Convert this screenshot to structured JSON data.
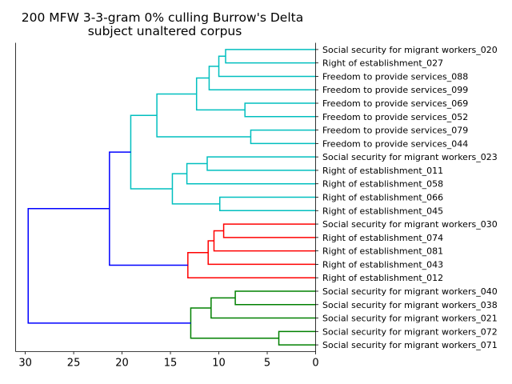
{
  "chart_data": {
    "type": "dendrogram",
    "title": "200 MFW 3-3-gram 0% culling Burrow's Delta",
    "subtitle": "subject unaltered corpus",
    "xlim": [
      31,
      0
    ],
    "x_ticks": [
      30,
      25,
      20,
      15,
      10,
      5,
      0
    ],
    "orientation": "leaves-right",
    "leaves": [
      "Social security for migrant workers_020",
      "Right of establishment_027",
      "Freedom to provide services_088",
      "Freedom to provide services_099",
      "Freedom to provide services_069",
      "Freedom to provide services_052",
      "Freedom to provide services_079",
      "Freedom to provide services_044",
      "Social security for migrant workers_023",
      "Right of establishment_011",
      "Right of establishment_058",
      "Right of establishment_066",
      "Right of establishment_045",
      "Social security for migrant workers_030",
      "Right of establishment_074",
      "Right of establishment_081",
      "Right of establishment_043",
      "Right of establishment_012",
      "Social security for migrant workers_040",
      "Social security for migrant workers_038",
      "Social security for migrant workers_021",
      "Social security for migrant workers_072",
      "Social security for migrant workers_071"
    ],
    "merges": [
      {
        "id": "n1",
        "children": [
          "L0",
          "L1"
        ],
        "height": 9.3,
        "color": "#00bfbf"
      },
      {
        "id": "n2",
        "children": [
          "n1",
          "L2"
        ],
        "height": 10.0,
        "color": "#00bfbf"
      },
      {
        "id": "n3",
        "children": [
          "n2",
          "L3"
        ],
        "height": 11.0,
        "color": "#00bfbf"
      },
      {
        "id": "n4",
        "children": [
          "L4",
          "L5"
        ],
        "height": 7.3,
        "color": "#00bfbf"
      },
      {
        "id": "n5",
        "children": [
          "n3",
          "n4"
        ],
        "height": 12.3,
        "color": "#00bfbf"
      },
      {
        "id": "n6",
        "children": [
          "L6",
          "L7"
        ],
        "height": 6.7,
        "color": "#00bfbf"
      },
      {
        "id": "n7",
        "children": [
          "n5",
          "n6"
        ],
        "height": 16.4,
        "color": "#00bfbf"
      },
      {
        "id": "n8",
        "children": [
          "L8",
          "L9"
        ],
        "height": 11.2,
        "color": "#00bfbf"
      },
      {
        "id": "n9",
        "children": [
          "n8",
          "L10"
        ],
        "height": 13.3,
        "color": "#00bfbf"
      },
      {
        "id": "n10",
        "children": [
          "L11",
          "L12"
        ],
        "height": 9.9,
        "color": "#00bfbf"
      },
      {
        "id": "n11",
        "children": [
          "n9",
          "n10"
        ],
        "height": 14.8,
        "color": "#00bfbf"
      },
      {
        "id": "n12",
        "children": [
          "n7",
          "n11"
        ],
        "height": 19.1,
        "color": "#00bfbf"
      },
      {
        "id": "n13",
        "children": [
          "L13",
          "L14"
        ],
        "height": 9.5,
        "color": "#ff0000"
      },
      {
        "id": "n14",
        "children": [
          "n13",
          "L15"
        ],
        "height": 10.5,
        "color": "#ff0000"
      },
      {
        "id": "n15",
        "children": [
          "n14",
          "L16"
        ],
        "height": 11.1,
        "color": "#ff0000"
      },
      {
        "id": "n16",
        "children": [
          "n15",
          "L17"
        ],
        "height": 13.2,
        "color": "#ff0000"
      },
      {
        "id": "n17",
        "children": [
          "n12",
          "n16"
        ],
        "height": 21.3,
        "color": "#0000ff"
      },
      {
        "id": "n18",
        "children": [
          "L18",
          "L19"
        ],
        "height": 8.3,
        "color": "#008000"
      },
      {
        "id": "n19",
        "children": [
          "n18",
          "L20"
        ],
        "height": 10.8,
        "color": "#008000"
      },
      {
        "id": "n20",
        "children": [
          "L21",
          "L22"
        ],
        "height": 3.8,
        "color": "#008000"
      },
      {
        "id": "n21",
        "children": [
          "n19",
          "n20"
        ],
        "height": 12.9,
        "color": "#008000"
      },
      {
        "id": "n22",
        "children": [
          "n17",
          "n21"
        ],
        "height": 29.7,
        "color": "#0000ff"
      }
    ]
  }
}
